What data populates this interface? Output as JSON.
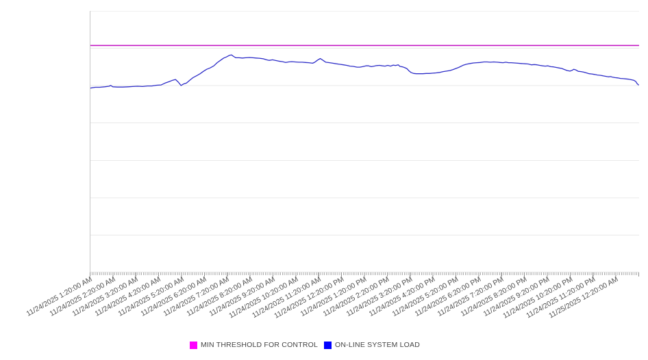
{
  "chart_data": {
    "type": "line",
    "title": "",
    "x_axis": {
      "tick_labels": [
        "11/24/2025 1:20:00 AM",
        "11/24/2025 2:20:00 AM",
        "11/24/2025 3:20:00 AM",
        "11/24/2025 4:20:00 AM",
        "11/24/2025 5:20:00 AM",
        "11/24/2025 6:20:00 AM",
        "11/24/2025 7:20:00 AM",
        "11/24/2025 8:20:00 AM",
        "11/24/2025 9:20:00 AM",
        "11/24/2025 10:20:00 AM",
        "11/24/2025 11:20:00 AM",
        "11/24/2025 12:20:00 PM",
        "11/24/2025 1:20:00 PM",
        "11/24/2025 2:20:00 PM",
        "11/24/2025 3:20:00 PM",
        "11/24/2025 4:20:00 PM",
        "11/24/2025 5:20:00 PM",
        "11/24/2025 6:20:00 PM",
        "11/24/2025 7:20:00 PM",
        "11/24/2025 8:20:00 PM",
        "11/24/2025 9:20:00 PM",
        "11/24/2025 10:20:00 PM",
        "11/24/2025 11:20:00 PM",
        "11/25/2025 12:20:00 AM"
      ],
      "minor_ticks_per_label_interval": 12
    },
    "y_axis": {
      "tick_labels": [],
      "unit": "unlabeled (series values given as 0-1 fraction of plot height)",
      "gridline_count": 8,
      "grid": "on"
    },
    "legend": {
      "position": "bottom",
      "entries": [
        {
          "label": "MIN THRESHOLD FOR CONTROL",
          "swatch_color": "#ff00ff"
        },
        {
          "label": "ON-LINE SYSTEM LOAD",
          "swatch_color": "#0000ff"
        }
      ]
    },
    "series": [
      {
        "name": "MIN THRESHOLD FOR CONTROL",
        "type": "horizontal-threshold",
        "color": "#c316c3",
        "y_norm": 0.868
      },
      {
        "name": "ON-LINE SYSTEM LOAD",
        "type": "line",
        "color": "#2d2dc8",
        "points_norm": [
          [
            0.0,
            0.705
          ],
          [
            0.009,
            0.708
          ],
          [
            0.017,
            0.708
          ],
          [
            0.026,
            0.71
          ],
          [
            0.034,
            0.712
          ],
          [
            0.037,
            0.715
          ],
          [
            0.041,
            0.71
          ],
          [
            0.049,
            0.709
          ],
          [
            0.059,
            0.709
          ],
          [
            0.069,
            0.71
          ],
          [
            0.077,
            0.711
          ],
          [
            0.086,
            0.712
          ],
          [
            0.095,
            0.711
          ],
          [
            0.104,
            0.713
          ],
          [
            0.112,
            0.713
          ],
          [
            0.121,
            0.716
          ],
          [
            0.129,
            0.717
          ],
          [
            0.136,
            0.724
          ],
          [
            0.144,
            0.73
          ],
          [
            0.15,
            0.735
          ],
          [
            0.155,
            0.738
          ],
          [
            0.16,
            0.728
          ],
          [
            0.165,
            0.715
          ],
          [
            0.17,
            0.721
          ],
          [
            0.175,
            0.724
          ],
          [
            0.181,
            0.735
          ],
          [
            0.187,
            0.745
          ],
          [
            0.194,
            0.753
          ],
          [
            0.2,
            0.76
          ],
          [
            0.206,
            0.769
          ],
          [
            0.212,
            0.777
          ],
          [
            0.218,
            0.782
          ],
          [
            0.225,
            0.79
          ],
          [
            0.231,
            0.802
          ],
          [
            0.237,
            0.811
          ],
          [
            0.243,
            0.82
          ],
          [
            0.248,
            0.824
          ],
          [
            0.253,
            0.83
          ],
          [
            0.257,
            0.832
          ],
          [
            0.261,
            0.826
          ],
          [
            0.265,
            0.821
          ],
          [
            0.271,
            0.821
          ],
          [
            0.277,
            0.82
          ],
          [
            0.283,
            0.821
          ],
          [
            0.29,
            0.822
          ],
          [
            0.296,
            0.821
          ],
          [
            0.302,
            0.82
          ],
          [
            0.308,
            0.819
          ],
          [
            0.315,
            0.817
          ],
          [
            0.321,
            0.813
          ],
          [
            0.326,
            0.811
          ],
          [
            0.332,
            0.813
          ],
          [
            0.337,
            0.811
          ],
          [
            0.343,
            0.808
          ],
          [
            0.35,
            0.806
          ],
          [
            0.356,
            0.803
          ],
          [
            0.361,
            0.805
          ],
          [
            0.367,
            0.806
          ],
          [
            0.373,
            0.805
          ],
          [
            0.38,
            0.804
          ],
          [
            0.386,
            0.804
          ],
          [
            0.392,
            0.803
          ],
          [
            0.398,
            0.802
          ],
          [
            0.405,
            0.8
          ],
          [
            0.409,
            0.804
          ],
          [
            0.414,
            0.812
          ],
          [
            0.419,
            0.818
          ],
          [
            0.424,
            0.811
          ],
          [
            0.429,
            0.804
          ],
          [
            0.436,
            0.802
          ],
          [
            0.442,
            0.8
          ],
          [
            0.448,
            0.798
          ],
          [
            0.454,
            0.796
          ],
          [
            0.461,
            0.794
          ],
          [
            0.467,
            0.792
          ],
          [
            0.473,
            0.789
          ],
          [
            0.479,
            0.788
          ],
          [
            0.486,
            0.785
          ],
          [
            0.491,
            0.785
          ],
          [
            0.496,
            0.787
          ],
          [
            0.502,
            0.79
          ],
          [
            0.507,
            0.79
          ],
          [
            0.512,
            0.787
          ],
          [
            0.517,
            0.789
          ],
          [
            0.522,
            0.791
          ],
          [
            0.527,
            0.792
          ],
          [
            0.532,
            0.79
          ],
          [
            0.537,
            0.789
          ],
          [
            0.542,
            0.792
          ],
          [
            0.547,
            0.789
          ],
          [
            0.552,
            0.793
          ],
          [
            0.556,
            0.791
          ],
          [
            0.561,
            0.794
          ],
          [
            0.564,
            0.788
          ],
          [
            0.569,
            0.786
          ],
          [
            0.573,
            0.783
          ],
          [
            0.577,
            0.779
          ],
          [
            0.58,
            0.772
          ],
          [
            0.584,
            0.765
          ],
          [
            0.589,
            0.761
          ],
          [
            0.594,
            0.76
          ],
          [
            0.6,
            0.76
          ],
          [
            0.606,
            0.76
          ],
          [
            0.612,
            0.761
          ],
          [
            0.618,
            0.761
          ],
          [
            0.624,
            0.762
          ],
          [
            0.63,
            0.763
          ],
          [
            0.637,
            0.765
          ],
          [
            0.643,
            0.768
          ],
          [
            0.649,
            0.77
          ],
          [
            0.655,
            0.772
          ],
          [
            0.66,
            0.775
          ],
          [
            0.665,
            0.779
          ],
          [
            0.67,
            0.783
          ],
          [
            0.675,
            0.788
          ],
          [
            0.68,
            0.793
          ],
          [
            0.685,
            0.796
          ],
          [
            0.692,
            0.799
          ],
          [
            0.698,
            0.801
          ],
          [
            0.704,
            0.802
          ],
          [
            0.71,
            0.803
          ],
          [
            0.717,
            0.805
          ],
          [
            0.723,
            0.805
          ],
          [
            0.729,
            0.804
          ],
          [
            0.735,
            0.805
          ],
          [
            0.742,
            0.804
          ],
          [
            0.747,
            0.803
          ],
          [
            0.752,
            0.802
          ],
          [
            0.757,
            0.804
          ],
          [
            0.762,
            0.802
          ],
          [
            0.767,
            0.802
          ],
          [
            0.773,
            0.801
          ],
          [
            0.779,
            0.8
          ],
          [
            0.785,
            0.799
          ],
          [
            0.792,
            0.798
          ],
          [
            0.798,
            0.797
          ],
          [
            0.804,
            0.794
          ],
          [
            0.809,
            0.795
          ],
          [
            0.814,
            0.794
          ],
          [
            0.819,
            0.792
          ],
          [
            0.824,
            0.79
          ],
          [
            0.829,
            0.789
          ],
          [
            0.834,
            0.79
          ],
          [
            0.839,
            0.787
          ],
          [
            0.844,
            0.786
          ],
          [
            0.849,
            0.784
          ],
          [
            0.854,
            0.782
          ],
          [
            0.859,
            0.78
          ],
          [
            0.864,
            0.776
          ],
          [
            0.869,
            0.772
          ],
          [
            0.874,
            0.77
          ],
          [
            0.878,
            0.773
          ],
          [
            0.881,
            0.777
          ],
          [
            0.885,
            0.774
          ],
          [
            0.889,
            0.769
          ],
          [
            0.894,
            0.768
          ],
          [
            0.899,
            0.766
          ],
          [
            0.904,
            0.763
          ],
          [
            0.909,
            0.76
          ],
          [
            0.914,
            0.759
          ],
          [
            0.919,
            0.757
          ],
          [
            0.924,
            0.755
          ],
          [
            0.929,
            0.754
          ],
          [
            0.934,
            0.752
          ],
          [
            0.939,
            0.75
          ],
          [
            0.944,
            0.748
          ],
          [
            0.948,
            0.749
          ],
          [
            0.951,
            0.747
          ],
          [
            0.956,
            0.745
          ],
          [
            0.961,
            0.744
          ],
          [
            0.966,
            0.742
          ],
          [
            0.971,
            0.741
          ],
          [
            0.976,
            0.74
          ],
          [
            0.981,
            0.739
          ],
          [
            0.986,
            0.737
          ],
          [
            0.99,
            0.735
          ],
          [
            0.994,
            0.73
          ],
          [
            0.996,
            0.723
          ],
          [
            0.999,
            0.717
          ]
        ]
      }
    ]
  }
}
